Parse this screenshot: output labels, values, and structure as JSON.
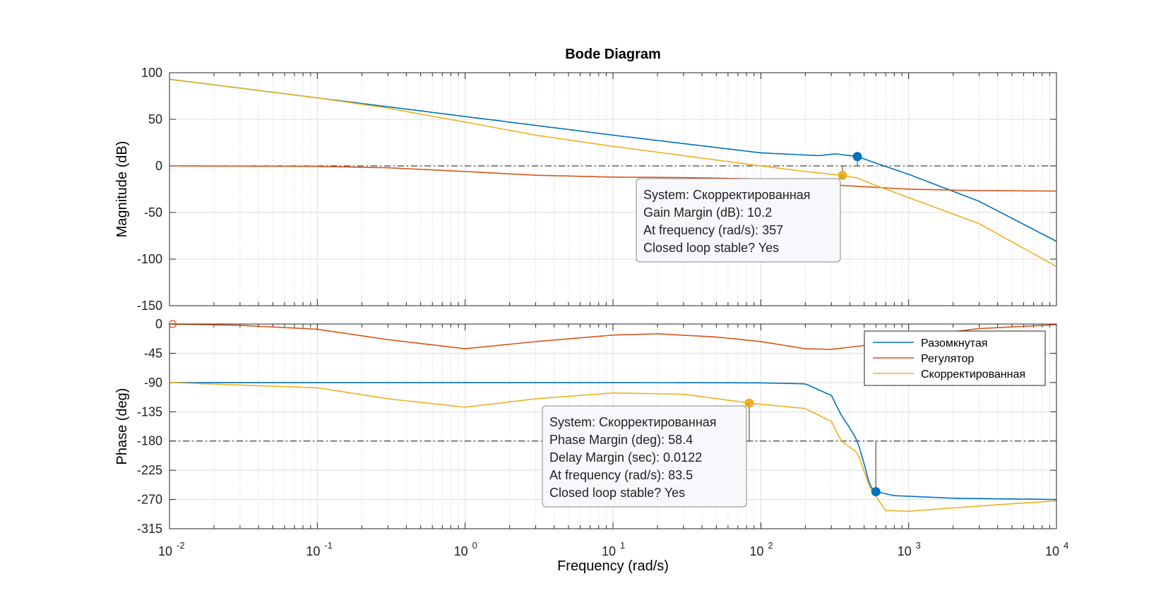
{
  "figure": {
    "title": "Bode Diagram",
    "xlabel": "Frequency  (rad/s)",
    "ylabel_mag": "Magnitude (dB)",
    "ylabel_phase": "Phase (deg)"
  },
  "colors": {
    "blue": "#0072BD",
    "red": "#D95319",
    "yellow": "#EDB120",
    "grid": "#dcdcdc",
    "frame": "#262626",
    "refline": "#404040"
  },
  "legend": [
    "Разомкнутая",
    "Регулятор",
    "Скорректированная"
  ],
  "tooltips": {
    "gain": [
      "System: Скорректированная",
      "Gain Margin (dB): 10.2",
      "At frequency (rad/s): 357",
      "Closed loop stable? Yes"
    ],
    "phase": [
      "System: Скорректированная",
      "Phase Margin (deg): 58.4",
      "Delay Margin (sec): 0.0122",
      "At frequency (rad/s): 83.5",
      "Closed loop stable? Yes"
    ]
  },
  "chart_data": {
    "type": "line",
    "title": "Bode Diagram",
    "xlabel": "Frequency  (rad/s)",
    "xscale": "log",
    "xlim": [
      0.01,
      10000
    ],
    "xticks": [
      0.01,
      0.1,
      1,
      10,
      100,
      1000,
      10000
    ],
    "xtick_labels": [
      "10^-2",
      "10^-1",
      "10^0",
      "10^1",
      "10^2",
      "10^3",
      "10^4"
    ],
    "grid": true,
    "legend_position": "top-right (phase panel)",
    "magnitude": {
      "ylabel": "Magnitude (dB)",
      "ylim": [
        -150,
        100
      ],
      "yticks": [
        100,
        50,
        0,
        -50,
        -100,
        -150
      ],
      "reference_line": 0,
      "series": [
        {
          "name": "Разомкнутая",
          "color": "#0072BD",
          "points": [
            [
              0.01,
              93
            ],
            [
              0.1,
              73
            ],
            [
              1,
              53
            ],
            [
              10,
              33
            ],
            [
              100,
              14
            ],
            [
              250,
              11
            ],
            [
              320,
              13
            ],
            [
              400,
              11
            ],
            [
              450,
              10
            ],
            [
              600,
              3
            ],
            [
              1000,
              -9
            ],
            [
              3000,
              -38
            ],
            [
              10000,
              -81
            ]
          ]
        },
        {
          "name": "Регулятор",
          "color": "#D95319",
          "points": [
            [
              0.01,
              0
            ],
            [
              0.1,
              -0.5
            ],
            [
              0.3,
              -2
            ],
            [
              1,
              -6
            ],
            [
              3,
              -10
            ],
            [
              10,
              -12
            ],
            [
              30,
              -12.5
            ],
            [
              100,
              -14
            ],
            [
              200,
              -17
            ],
            [
              357,
              -21
            ],
            [
              1000,
              -25
            ],
            [
              3000,
              -26.5
            ],
            [
              10000,
              -27
            ]
          ]
        },
        {
          "name": "Скорректированная",
          "color": "#EDB120",
          "points": [
            [
              0.01,
              93
            ],
            [
              0.1,
              73
            ],
            [
              0.3,
              62
            ],
            [
              1,
              47
            ],
            [
              3,
              33
            ],
            [
              10,
              21
            ],
            [
              30,
              11
            ],
            [
              100,
              0
            ],
            [
              200,
              -6
            ],
            [
              300,
              -9
            ],
            [
              357,
              -10.2
            ],
            [
              450,
              -13
            ],
            [
              600,
              -21
            ],
            [
              1000,
              -34
            ],
            [
              3000,
              -62
            ],
            [
              10000,
              -108
            ]
          ]
        }
      ],
      "markers": [
        {
          "series": "Разомкнутая",
          "x": 450,
          "y": 10
        },
        {
          "series": "Скорректированная",
          "x": 357,
          "y": -10.2
        }
      ]
    },
    "phase": {
      "ylabel": "Phase (deg)",
      "ylim": [
        -315,
        0
      ],
      "yticks": [
        0,
        -45,
        -90,
        -135,
        -180,
        -225,
        -270,
        -315
      ],
      "reference_line": -180,
      "series": [
        {
          "name": "Разомкнутая",
          "color": "#0072BD",
          "points": [
            [
              0.01,
              -90
            ],
            [
              10,
              -90
            ],
            [
              100,
              -90.5
            ],
            [
              200,
              -92
            ],
            [
              300,
              -110
            ],
            [
              350,
              -140
            ],
            [
              400,
              -160
            ],
            [
              450,
              -180
            ],
            [
              500,
              -215
            ],
            [
              550,
              -250
            ],
            [
              600,
              -258
            ],
            [
              800,
              -264
            ],
            [
              2000,
              -268
            ],
            [
              10000,
              -270
            ]
          ]
        },
        {
          "name": "Регулятор",
          "color": "#D95319",
          "points": [
            [
              0.01,
              0
            ],
            [
              0.03,
              -2
            ],
            [
              0.1,
              -8
            ],
            [
              0.3,
              -24
            ],
            [
              1,
              -38
            ],
            [
              3,
              -27
            ],
            [
              10,
              -17
            ],
            [
              20,
              -15
            ],
            [
              50,
              -20
            ],
            [
              100,
              -27
            ],
            [
              200,
              -38
            ],
            [
              300,
              -39
            ],
            [
              500,
              -33
            ],
            [
              1000,
              -20
            ],
            [
              3000,
              -7
            ],
            [
              10000,
              -1
            ]
          ]
        },
        {
          "name": "Скорректированная",
          "color": "#EDB120",
          "points": [
            [
              0.01,
              -90
            ],
            [
              0.1,
              -98
            ],
            [
              0.3,
              -115
            ],
            [
              1,
              -128
            ],
            [
              3,
              -115
            ],
            [
              10,
              -106
            ],
            [
              30,
              -108
            ],
            [
              83.5,
              -121.6
            ],
            [
              200,
              -130
            ],
            [
              300,
              -150
            ],
            [
              350,
              -180
            ],
            [
              450,
              -198
            ],
            [
              550,
              -253
            ],
            [
              700,
              -287
            ],
            [
              1000,
              -288
            ],
            [
              3000,
              -280
            ],
            [
              10000,
              -272
            ]
          ]
        }
      ],
      "markers": [
        {
          "series": "Разомкнутая",
          "x": 600,
          "y": -258
        },
        {
          "series": "Скорректированная",
          "x": 83.5,
          "y": -121.6
        }
      ]
    }
  }
}
